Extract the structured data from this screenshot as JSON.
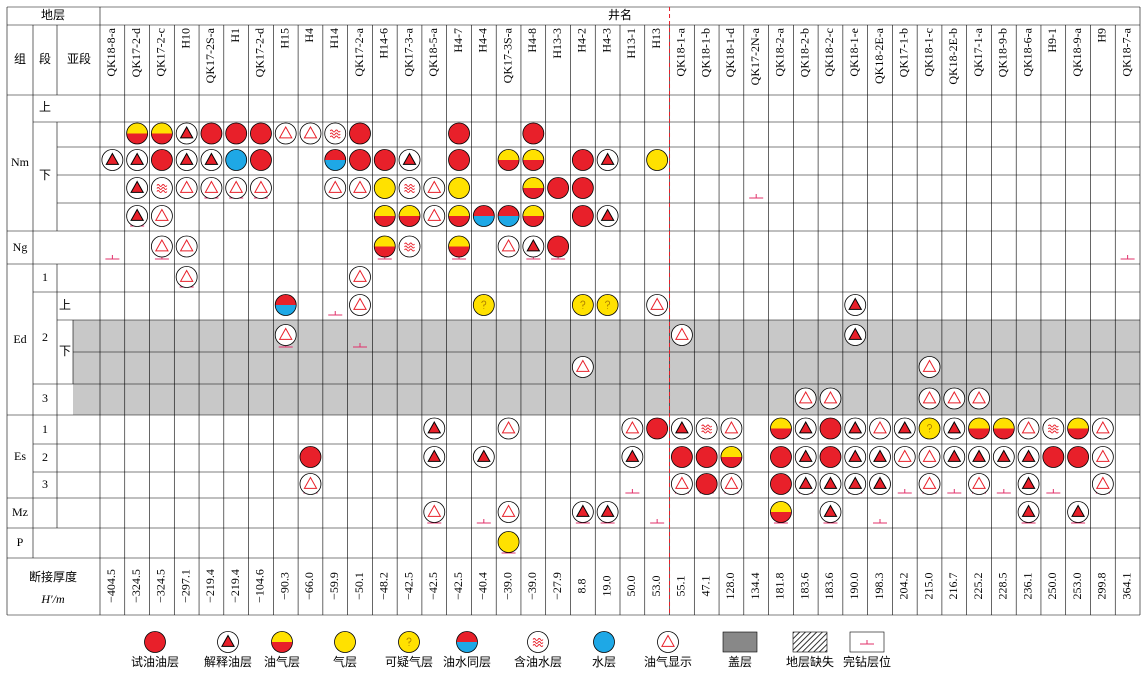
{
  "header": {
    "strata": "地层",
    "wells": "井名",
    "group": "组",
    "member": "段",
    "submember": "亚段"
  },
  "strata": {
    "groups": [
      "Nm",
      "Ng",
      "Ed",
      "Es",
      "Mz",
      "P"
    ],
    "members": [
      "1",
      "2",
      "3",
      "1",
      "2",
      "3"
    ],
    "submembers": [
      "上",
      "下",
      "上",
      "下"
    ]
  },
  "thickness_label": [
    "断接厚度",
    "H′/m"
  ],
  "wells": [
    {
      "name": "QK18-8-a",
      "thickness": "−404.5",
      "completion": 5
    },
    {
      "name": "QK17-2-d",
      "thickness": "−324.5",
      "completion": 4
    },
    {
      "name": "QK17-2-c",
      "thickness": "−324.5",
      "completion": 5
    },
    {
      "name": "H10",
      "thickness": "−297.1",
      "completion": 6
    },
    {
      "name": "QK17-2S-a",
      "thickness": "−219.4",
      "completion": 3
    },
    {
      "name": "H1",
      "thickness": "−219.4",
      "completion": 3
    },
    {
      "name": "QK17-2-d",
      "thickness": "−104.6",
      "completion": 3
    },
    {
      "name": "H15",
      "thickness": "−90.3",
      "completion": 8
    },
    {
      "name": "H4",
      "thickness": "−66.0",
      "completion": 13
    },
    {
      "name": "H14",
      "thickness": "−59.9",
      "completion": 7
    },
    {
      "name": "QK17-2-a",
      "thickness": "−50.1",
      "completion": 8
    },
    {
      "name": "H14-6",
      "thickness": "−48.2",
      "completion": 5
    },
    {
      "name": "QK17-3-a",
      "thickness": "−42.5",
      "completion": null
    },
    {
      "name": "QK18-5-a",
      "thickness": "−42.5",
      "completion": 14
    },
    {
      "name": "H4-7",
      "thickness": "−42.5",
      "completion": 5
    },
    {
      "name": "H4-4",
      "thickness": "−40.4",
      "completion": 14
    },
    {
      "name": "QK17-3S-a",
      "thickness": "−39.0",
      "completion": 15
    },
    {
      "name": "H4-8",
      "thickness": "−39.0",
      "completion": 5
    },
    {
      "name": "H13-3",
      "thickness": "−27.9",
      "completion": 5
    },
    {
      "name": "H4-2",
      "thickness": "8.8",
      "completion": 14
    },
    {
      "name": "H4-3",
      "thickness": "19.0",
      "completion": 14
    },
    {
      "name": "H13-1",
      "thickness": "50.0",
      "completion": 13
    },
    {
      "name": "H13",
      "thickness": "53.0",
      "completion": 14
    },
    {
      "name": "QK18-1-a",
      "thickness": "55.1",
      "completion": 13
    },
    {
      "name": "QK18-1-b",
      "thickness": "47.1",
      "completion": 13
    },
    {
      "name": "QK18-1-d",
      "thickness": "128.0",
      "completion": 13
    },
    {
      "name": "QK17-2N-a",
      "thickness": "134.4",
      "completion": 3
    },
    {
      "name": "QK18-2-a",
      "thickness": "181.8",
      "completion": 14
    },
    {
      "name": "QK18-2-b",
      "thickness": "183.6",
      "completion": 13
    },
    {
      "name": "QK18-2-c",
      "thickness": "183.6",
      "completion": 14
    },
    {
      "name": "QK18-1-e",
      "thickness": "190.0",
      "completion": 13
    },
    {
      "name": "QK18-2E-a",
      "thickness": "198.3",
      "completion": 14
    },
    {
      "name": "QK17-1-b",
      "thickness": "204.2",
      "completion": 13
    },
    {
      "name": "QK18-1-c",
      "thickness": "215.0",
      "completion": 13
    },
    {
      "name": "QK18-2E-b",
      "thickness": "216.7",
      "completion": 13
    },
    {
      "name": "QK17-1-a",
      "thickness": "225.2",
      "completion": 13
    },
    {
      "name": "QK18-9-b",
      "thickness": "228.5",
      "completion": 13
    },
    {
      "name": "QK18-6-a",
      "thickness": "236.1",
      "completion": 14
    },
    {
      "name": "H9-1",
      "thickness": "250.0",
      "completion": 13
    },
    {
      "name": "QK18-9-a",
      "thickness": "253.0",
      "completion": 14
    },
    {
      "name": "H9",
      "thickness": "299.8",
      "completion": 13
    },
    {
      "name": "QK18-7-a",
      "thickness": "364.1",
      "completion": 5
    }
  ],
  "rows": [
    [
      null,
      null,
      null,
      null,
      null,
      null,
      null,
      null,
      null,
      null,
      null,
      null,
      null,
      null,
      null,
      null,
      null,
      null,
      null,
      null,
      null,
      null,
      null,
      null,
      null,
      null,
      null,
      null,
      null,
      null,
      null,
      null,
      null,
      null,
      null,
      null,
      null,
      null,
      null,
      null,
      null,
      null
    ],
    [
      null,
      2,
      2,
      1,
      0,
      0,
      0,
      8,
      8,
      6,
      0,
      null,
      null,
      null,
      0,
      null,
      null,
      0,
      null,
      null,
      null,
      null,
      null,
      null,
      null,
      null,
      null,
      null,
      null,
      null,
      null,
      null,
      null,
      null,
      null,
      null,
      null,
      null,
      null,
      null,
      null,
      null
    ],
    [
      1,
      1,
      0,
      1,
      1,
      7,
      0,
      null,
      null,
      5,
      0,
      0,
      1,
      null,
      0,
      null,
      2,
      2,
      null,
      0,
      1,
      null,
      3,
      null,
      null,
      null,
      null,
      null,
      null,
      null,
      null,
      null,
      null,
      null,
      null,
      null,
      null,
      null,
      null,
      null,
      null,
      null
    ],
    [
      null,
      1,
      6,
      8,
      8,
      8,
      8,
      null,
      null,
      8,
      8,
      3,
      6,
      8,
      3,
      null,
      null,
      2,
      0,
      0,
      null,
      null,
      null,
      null,
      null,
      null,
      null,
      null,
      null,
      null,
      null,
      null,
      null,
      null,
      null,
      null,
      null,
      null,
      null,
      null,
      null,
      null
    ],
    [
      null,
      1,
      8,
      null,
      null,
      null,
      null,
      null,
      null,
      null,
      null,
      2,
      2,
      8,
      2,
      5,
      5,
      2,
      null,
      0,
      1,
      null,
      null,
      null,
      null,
      null,
      null,
      null,
      null,
      null,
      null,
      null,
      null,
      null,
      null,
      null,
      null,
      null,
      null,
      null,
      null,
      null
    ],
    [
      null,
      null,
      8,
      8,
      null,
      null,
      null,
      null,
      null,
      null,
      null,
      2,
      6,
      null,
      2,
      null,
      8,
      1,
      0,
      null,
      null,
      null,
      null,
      null,
      null,
      null,
      null,
      null,
      null,
      null,
      null,
      null,
      null,
      null,
      null,
      null,
      null,
      null,
      null,
      null,
      null,
      null
    ],
    [
      null,
      null,
      null,
      8,
      null,
      null,
      null,
      null,
      null,
      null,
      8,
      null,
      null,
      null,
      null,
      null,
      null,
      null,
      null,
      null,
      null,
      null,
      null,
      null,
      null,
      null,
      null,
      null,
      null,
      null,
      null,
      null,
      null,
      null,
      null,
      null,
      null,
      null,
      null,
      null,
      null,
      null
    ],
    [
      null,
      null,
      null,
      null,
      null,
      null,
      null,
      5,
      null,
      null,
      8,
      null,
      null,
      null,
      null,
      4,
      null,
      null,
      null,
      4,
      4,
      null,
      8,
      null,
      null,
      null,
      null,
      null,
      null,
      null,
      1,
      null,
      null,
      null,
      null,
      null,
      null,
      null,
      null,
      null,
      null,
      null
    ],
    [
      null,
      null,
      null,
      null,
      null,
      null,
      null,
      8,
      null,
      null,
      null,
      null,
      null,
      null,
      null,
      null,
      null,
      null,
      null,
      null,
      null,
      null,
      null,
      8,
      null,
      null,
      null,
      null,
      null,
      null,
      1,
      null,
      null,
      null,
      null,
      null,
      null,
      null,
      null,
      null,
      null,
      null
    ],
    [
      null,
      null,
      null,
      null,
      null,
      null,
      null,
      null,
      null,
      null,
      null,
      null,
      null,
      null,
      null,
      null,
      null,
      null,
      null,
      8,
      null,
      null,
      null,
      null,
      null,
      null,
      null,
      null,
      null,
      null,
      null,
      null,
      null,
      8,
      null,
      null,
      null,
      null,
      null,
      null,
      null,
      null
    ],
    [
      null,
      null,
      null,
      null,
      null,
      null,
      null,
      null,
      null,
      null,
      null,
      null,
      null,
      null,
      null,
      null,
      null,
      null,
      null,
      null,
      null,
      null,
      null,
      null,
      null,
      null,
      null,
      null,
      8,
      8,
      null,
      null,
      null,
      8,
      8,
      8,
      null,
      null,
      null,
      null,
      null,
      null
    ],
    [
      null,
      null,
      null,
      null,
      null,
      null,
      null,
      null,
      null,
      null,
      null,
      null,
      null,
      1,
      null,
      null,
      8,
      null,
      null,
      null,
      null,
      8,
      0,
      1,
      6,
      8,
      null,
      2,
      1,
      0,
      1,
      8,
      1,
      4,
      1,
      2,
      2,
      8,
      6,
      2,
      8,
      null
    ],
    [
      null,
      null,
      null,
      null,
      null,
      null,
      null,
      null,
      0,
      null,
      null,
      null,
      null,
      1,
      null,
      1,
      null,
      null,
      null,
      null,
      null,
      1,
      null,
      0,
      0,
      2,
      null,
      0,
      1,
      0,
      1,
      1,
      8,
      8,
      1,
      1,
      1,
      1,
      0,
      0,
      8,
      null
    ],
    [
      null,
      null,
      null,
      null,
      null,
      null,
      null,
      null,
      8,
      null,
      null,
      null,
      null,
      null,
      null,
      null,
      null,
      null,
      null,
      null,
      null,
      null,
      null,
      8,
      0,
      8,
      null,
      0,
      1,
      1,
      1,
      1,
      null,
      8,
      null,
      8,
      null,
      1,
      null,
      null,
      8,
      null
    ],
    [
      null,
      null,
      null,
      null,
      null,
      null,
      null,
      null,
      null,
      null,
      null,
      null,
      null,
      8,
      null,
      null,
      8,
      null,
      null,
      1,
      1,
      null,
      null,
      null,
      null,
      null,
      null,
      2,
      null,
      1,
      null,
      null,
      null,
      null,
      null,
      null,
      null,
      1,
      null,
      1,
      null,
      null
    ],
    [
      null,
      null,
      null,
      null,
      null,
      null,
      null,
      null,
      null,
      null,
      null,
      null,
      null,
      null,
      null,
      null,
      3,
      null,
      null,
      null,
      null,
      null,
      null,
      null,
      null,
      null,
      null,
      null,
      null,
      null,
      null,
      null,
      null,
      null,
      null,
      null,
      null,
      null,
      null,
      null,
      null,
      null
    ]
  ],
  "legend": [
    "试油油层",
    "解释油层",
    "油气层",
    "气层",
    "可疑气层",
    "油水同层",
    "含油水层",
    "水层",
    "油气显示",
    "盖层",
    "地层缺失",
    "完钻层位"
  ]
}
